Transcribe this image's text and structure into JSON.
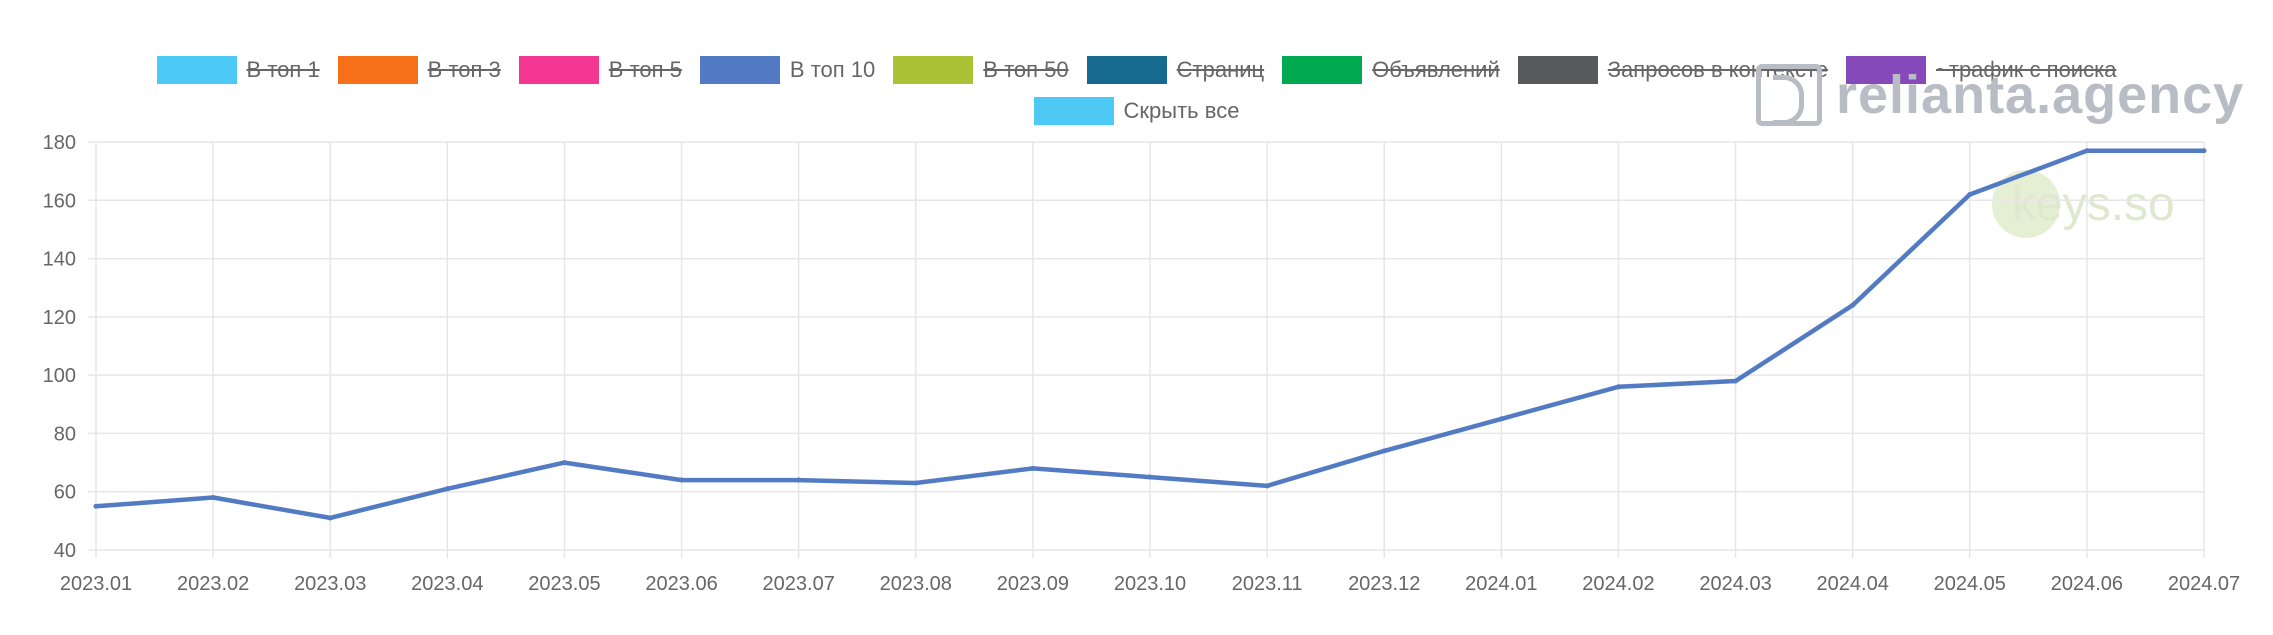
{
  "legend": {
    "items": [
      {
        "label": "В топ 1",
        "color": "#4dc9f6",
        "hidden": true
      },
      {
        "label": "В топ 3",
        "color": "#f67019",
        "hidden": true
      },
      {
        "label": "В топ 5",
        "color": "#f53794",
        "hidden": true
      },
      {
        "label": "В топ 10",
        "color": "#537bc4",
        "hidden": false
      },
      {
        "label": "В топ 50",
        "color": "#acc236",
        "hidden": true
      },
      {
        "label": "Страниц",
        "color": "#166a8f",
        "hidden": true
      },
      {
        "label": "Объявлений",
        "color": "#00a950",
        "hidden": true
      },
      {
        "label": "Запросов в контексте",
        "color": "#58595b",
        "hidden": true
      },
      {
        "label": "~трафик с поиска",
        "color": "#8549ba",
        "hidden": true
      }
    ],
    "toggle_all": {
      "label": "Скрыть все",
      "color": "#4dc9f6"
    }
  },
  "watermarks": {
    "reliant": "relianta.agency",
    "keys": "keys.so"
  },
  "chart_data": {
    "type": "line",
    "title": "",
    "xlabel": "",
    "ylabel": "",
    "x": [
      "2023.01",
      "2023.02",
      "2023.03",
      "2023.04",
      "2023.05",
      "2023.06",
      "2023.07",
      "2023.08",
      "2023.09",
      "2023.10",
      "2023.11",
      "2023.12",
      "2024.01",
      "2024.02",
      "2024.03",
      "2024.04",
      "2024.05",
      "2024.06",
      "2024.07"
    ],
    "series": [
      {
        "name": "В топ 10",
        "color": "#537bc4",
        "values": [
          55,
          58,
          51,
          61,
          70,
          64,
          64,
          63,
          68,
          65,
          62,
          74,
          85,
          96,
          98,
          124,
          162,
          177,
          177
        ]
      }
    ],
    "ylim": [
      40,
      180
    ],
    "yticks": [
      40,
      60,
      80,
      100,
      120,
      140,
      160,
      180
    ],
    "grid": true,
    "legend_position": "top"
  }
}
